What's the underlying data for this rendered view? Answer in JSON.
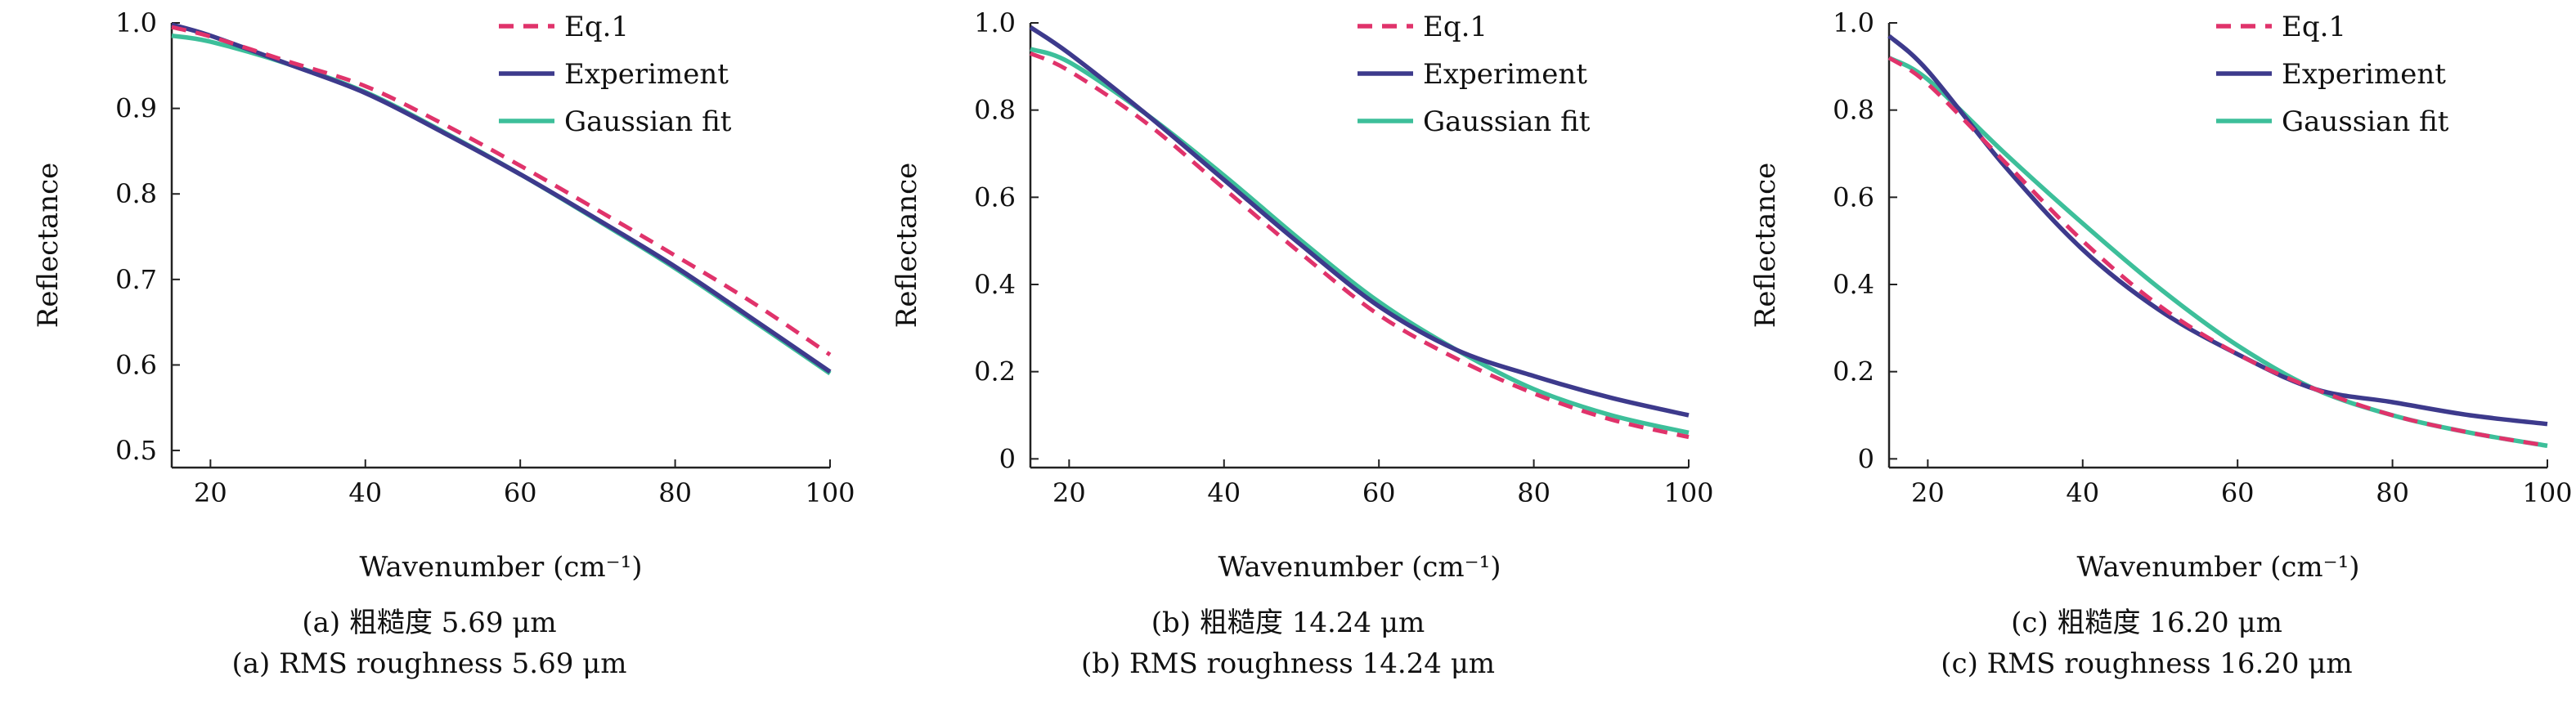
{
  "colors": {
    "eq1": "#e0336b",
    "experiment": "#3d3a8c",
    "gaussian": "#3dbf9a"
  },
  "chart_data": [
    {
      "type": "line",
      "xlabel": "Wavenumber (cm⁻¹)",
      "ylabel": "Reflectance",
      "xlim": [
        15,
        100
      ],
      "ylim": [
        0.48,
        1.0
      ],
      "xticks": [
        20,
        40,
        60,
        80,
        100
      ],
      "yticks": [
        0.5,
        0.6,
        0.7,
        0.8,
        0.9,
        1.0
      ],
      "ytick_labels": [
        "0.5",
        "0.6",
        "0.7",
        "0.8",
        "0.9",
        "1.0"
      ],
      "legend": "top-right",
      "caption_zh": "(a) 粗糙度 5.69 μm",
      "caption_en": "(a) RMS roughness 5.69 μm",
      "x": [
        15,
        20,
        30,
        40,
        50,
        60,
        70,
        80,
        90,
        100
      ],
      "series": [
        {
          "name": "Eq.1",
          "style": "dashed",
          "values": [
            0.995,
            0.984,
            0.955,
            0.926,
            0.882,
            0.833,
            0.781,
            0.728,
            0.673,
            0.612
          ]
        },
        {
          "name": "Experiment",
          "style": "solid",
          "values": [
            0.998,
            0.985,
            0.952,
            0.918,
            0.872,
            0.823,
            0.77,
            0.715,
            0.654,
            0.592
          ]
        },
        {
          "name": "Gaussian fit",
          "style": "solid",
          "values": [
            0.985,
            0.978,
            0.952,
            0.919,
            0.873,
            0.823,
            0.769,
            0.713,
            0.652,
            0.59
          ]
        }
      ]
    },
    {
      "type": "line",
      "xlabel": "Wavenumber (cm⁻¹)",
      "ylabel": "Reflectance",
      "xlim": [
        15,
        100
      ],
      "ylim": [
        -0.02,
        1.0
      ],
      "xticks": [
        20,
        40,
        60,
        80,
        100
      ],
      "yticks": [
        0,
        0.2,
        0.4,
        0.6,
        0.8,
        1.0
      ],
      "ytick_labels": [
        "0",
        "0.2",
        "0.4",
        "0.6",
        "0.8",
        "1.0"
      ],
      "legend": "top-right",
      "caption_zh": "(b) 粗糙度 14.24 μm",
      "caption_en": "(b) RMS roughness 14.24 μm",
      "x": [
        15,
        20,
        30,
        40,
        50,
        60,
        70,
        80,
        90,
        100
      ],
      "series": [
        {
          "name": "Eq.1",
          "style": "dashed",
          "values": [
            0.93,
            0.89,
            0.77,
            0.62,
            0.47,
            0.33,
            0.23,
            0.15,
            0.09,
            0.05
          ]
        },
        {
          "name": "Experiment",
          "style": "solid",
          "values": [
            0.99,
            0.93,
            0.79,
            0.64,
            0.49,
            0.35,
            0.25,
            0.19,
            0.14,
            0.1
          ]
        },
        {
          "name": "Gaussian fit",
          "style": "solid",
          "values": [
            0.94,
            0.91,
            0.79,
            0.65,
            0.5,
            0.36,
            0.25,
            0.16,
            0.1,
            0.06
          ]
        }
      ]
    },
    {
      "type": "line",
      "xlabel": "Wavenumber (cm⁻¹)",
      "ylabel": "Reflectance",
      "xlim": [
        15,
        100
      ],
      "ylim": [
        -0.02,
        1.0
      ],
      "xticks": [
        20,
        40,
        60,
        80,
        100
      ],
      "yticks": [
        0,
        0.2,
        0.4,
        0.6,
        0.8,
        1.0
      ],
      "ytick_labels": [
        "0",
        "0.2",
        "0.4",
        "0.6",
        "0.8",
        "1.0"
      ],
      "legend": "top-right",
      "caption_zh": "(c) 粗糙度 16.20 μm",
      "caption_en": "(c) RMS roughness 16.20 μm",
      "x": [
        15,
        20,
        30,
        40,
        50,
        60,
        70,
        80,
        90,
        100
      ],
      "series": [
        {
          "name": "Eq.1",
          "style": "dashed",
          "values": [
            0.92,
            0.86,
            0.68,
            0.5,
            0.35,
            0.24,
            0.16,
            0.1,
            0.06,
            0.03
          ]
        },
        {
          "name": "Experiment",
          "style": "solid",
          "values": [
            0.97,
            0.89,
            0.67,
            0.48,
            0.34,
            0.24,
            0.16,
            0.13,
            0.1,
            0.08
          ]
        },
        {
          "name": "Gaussian fit",
          "style": "solid",
          "values": [
            0.92,
            0.87,
            0.7,
            0.54,
            0.39,
            0.26,
            0.16,
            0.1,
            0.06,
            0.03
          ]
        }
      ]
    }
  ]
}
